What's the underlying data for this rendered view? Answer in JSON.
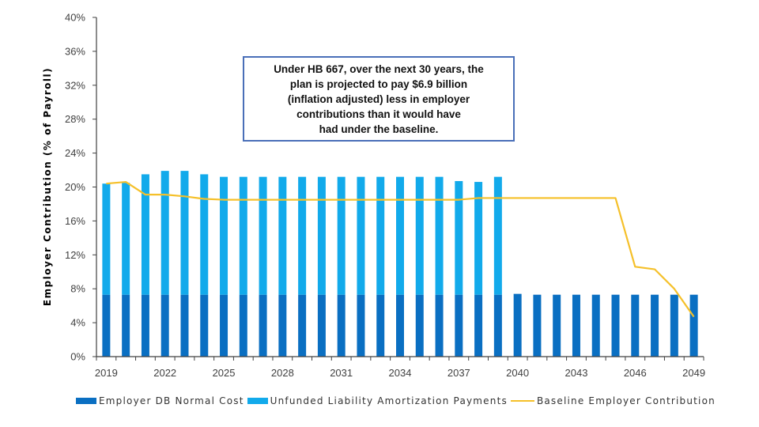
{
  "chart_data": {
    "type": "bar",
    "stacked": true,
    "title": "",
    "xlabel": "",
    "ylabel": "Employer Contribution (% of Payroll)",
    "ylim": [
      0,
      40
    ],
    "yticks": [
      0,
      4,
      8,
      12,
      16,
      20,
      24,
      28,
      32,
      36,
      40
    ],
    "ytick_labels": [
      "0%",
      "4%",
      "8%",
      "12%",
      "16%",
      "20%",
      "24%",
      "28%",
      "32%",
      "36%",
      "40%"
    ],
    "categories": [
      "2019",
      "2020",
      "2021",
      "2022",
      "2023",
      "2024",
      "2025",
      "2026",
      "2027",
      "2028",
      "2029",
      "2030",
      "2031",
      "2032",
      "2033",
      "2034",
      "2035",
      "2036",
      "2037",
      "2038",
      "2039",
      "2040",
      "2041",
      "2042",
      "2043",
      "2044",
      "2045",
      "2046",
      "2047",
      "2048",
      "2049"
    ],
    "xtick_labels_shown": [
      "2019",
      "2022",
      "2025",
      "2028",
      "2031",
      "2034",
      "2037",
      "2040",
      "2043",
      "2046",
      "2049"
    ],
    "grid": false,
    "legend_position": "bottom",
    "series": [
      {
        "name": "Employer DB Normal Cost",
        "kind": "bar",
        "color": "#0a6fc2",
        "values": [
          7.3,
          7.3,
          7.3,
          7.3,
          7.3,
          7.3,
          7.3,
          7.3,
          7.3,
          7.3,
          7.3,
          7.3,
          7.3,
          7.3,
          7.3,
          7.3,
          7.3,
          7.3,
          7.3,
          7.3,
          7.3,
          7.4,
          7.3,
          7.3,
          7.3,
          7.3,
          7.3,
          7.3,
          7.3,
          7.3,
          7.3
        ]
      },
      {
        "name": "Unfunded Liability Amortization Payments",
        "kind": "bar",
        "color": "#12aaeb",
        "values": [
          13.1,
          13.2,
          14.2,
          14.6,
          14.6,
          14.2,
          13.9,
          13.9,
          13.9,
          13.9,
          13.9,
          13.9,
          13.9,
          13.9,
          13.9,
          13.9,
          13.9,
          13.9,
          13.4,
          13.3,
          13.9,
          0,
          0,
          0,
          0,
          0,
          0,
          0,
          0,
          0,
          0
        ]
      },
      {
        "name": "Baseline Employer Contribution",
        "kind": "line",
        "color": "#f5c02a",
        "values": [
          20.4,
          20.6,
          19.1,
          19.1,
          18.9,
          18.6,
          18.5,
          18.5,
          18.5,
          18.5,
          18.5,
          18.5,
          18.5,
          18.5,
          18.5,
          18.5,
          18.5,
          18.5,
          18.5,
          18.7,
          18.7,
          18.7,
          18.7,
          18.7,
          18.7,
          18.7,
          18.7,
          10.6,
          10.3,
          8.0,
          4.7
        ]
      }
    ],
    "annotation": "Under HB 667, over the next 30 years, the plan is projected to pay $6.9 billion (inflation adjusted)  less in employer contributions than it would have had under the baseline.",
    "annotation_lines": [
      "Under HB 667, over the next 30 years, the",
      "plan is projected to pay $6.9 billion",
      "(inflation adjusted)  less in employer",
      "contributions than it would have",
      "had under the baseline."
    ],
    "axis_color": "#404040",
    "annotation_border_color": "#4a6fb8"
  }
}
